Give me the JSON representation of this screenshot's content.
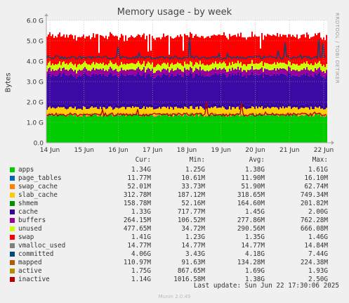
{
  "chart_data": {
    "type": "area",
    "title": "Memory usage - by week",
    "ylabel": "Bytes",
    "ylim": [
      0,
      6.0
    ],
    "y_ticks": [
      "0.0",
      "1.0 G",
      "2.0 G",
      "3.0 G",
      "4.0 G",
      "5.0 G",
      "6.0 G"
    ],
    "x_ticks": [
      "14 Jun",
      "15 Jun",
      "16 Jun",
      "17 Jun",
      "18 Jun",
      "19 Jun",
      "20 Jun",
      "21 Jun",
      "22 Jun"
    ],
    "grid": true,
    "stack_series": [
      {
        "name": "apps",
        "color": "#00cc00",
        "approx_G": 1.34
      },
      {
        "name": "page_tables",
        "color": "#0066b3",
        "approx_G": 0.012
      },
      {
        "name": "swap_cache",
        "color": "#ff8000",
        "approx_G": 0.05
      },
      {
        "name": "slab_cache",
        "color": "#ffcc00",
        "approx_G": 0.31
      },
      {
        "name": "shmem",
        "color": "#330099",
        "approx_G": 0.16
      },
      {
        "name": "cache",
        "color": "#3b0aa5",
        "approx_G": 1.45
      },
      {
        "name": "buffers",
        "color": "#990099",
        "approx_G": 0.26
      },
      {
        "name": "unused",
        "color": "#ccff00",
        "approx_G": 0.29
      },
      {
        "name": "swap",
        "color": "#ff0000",
        "approx_G": 1.36
      }
    ],
    "line_series": [
      {
        "name": "committed",
        "color": "#00487d",
        "approx_G": 4.18
      },
      {
        "name": "inactive",
        "color": "#b30000",
        "approx_G": 1.38
      }
    ]
  },
  "watermark": "RRDTOOL / TOBI OETIKER",
  "legend": {
    "headers": {
      "cur": "Cur:",
      "min": "Min:",
      "avg": "Avg:",
      "max": "Max:"
    },
    "rows": [
      {
        "name": "apps",
        "color": "#00cc00",
        "cur": "1.34G",
        "min": "1.25G",
        "avg": "1.38G",
        "max": "1.61G"
      },
      {
        "name": "page_tables",
        "color": "#0066b3",
        "cur": "11.77M",
        "min": "10.61M",
        "avg": "11.90M",
        "max": "16.10M"
      },
      {
        "name": "swap_cache",
        "color": "#ff8000",
        "cur": "52.01M",
        "min": "33.73M",
        "avg": "51.90M",
        "max": "62.74M"
      },
      {
        "name": "slab_cache",
        "color": "#ffcc00",
        "cur": "312.78M",
        "min": "187.12M",
        "avg": "318.65M",
        "max": "749.34M"
      },
      {
        "name": "shmem",
        "color": "#008f00",
        "cur": "158.78M",
        "min": "52.16M",
        "avg": "164.60M",
        "max": "201.82M"
      },
      {
        "name": "cache",
        "color": "#330099",
        "cur": "1.33G",
        "min": "717.77M",
        "avg": "1.45G",
        "max": "2.00G"
      },
      {
        "name": "buffers",
        "color": "#990099",
        "cur": "264.15M",
        "min": "106.52M",
        "avg": "277.86M",
        "max": "762.28M"
      },
      {
        "name": "unused",
        "color": "#ccff00",
        "cur": "477.65M",
        "min": "34.72M",
        "avg": "290.56M",
        "max": "666.08M"
      },
      {
        "name": "swap",
        "color": "#ff0000",
        "cur": "1.41G",
        "min": "1.23G",
        "avg": "1.35G",
        "max": "1.46G"
      },
      {
        "name": "vmalloc_used",
        "color": "#808080",
        "cur": "14.77M",
        "min": "14.77M",
        "avg": "14.77M",
        "max": "14.84M"
      },
      {
        "name": "committed",
        "color": "#00487d",
        "cur": "4.06G",
        "min": "3.43G",
        "avg": "4.18G",
        "max": "7.44G"
      },
      {
        "name": "mapped",
        "color": "#b35a00",
        "cur": "110.97M",
        "min": "91.63M",
        "avg": "134.28M",
        "max": "224.38M"
      },
      {
        "name": "active",
        "color": "#b38f00",
        "cur": "1.75G",
        "min": "867.65M",
        "avg": "1.69G",
        "max": "1.93G"
      },
      {
        "name": "inactive",
        "color": "#b30000",
        "cur": "1.14G",
        "min": "1016.58M",
        "avg": "1.38G",
        "max": "2.50G"
      }
    ]
  },
  "last_update": "Last update: Sun Jun 22 17:30:06 2025",
  "munin_version": "Munin 2.0.49"
}
